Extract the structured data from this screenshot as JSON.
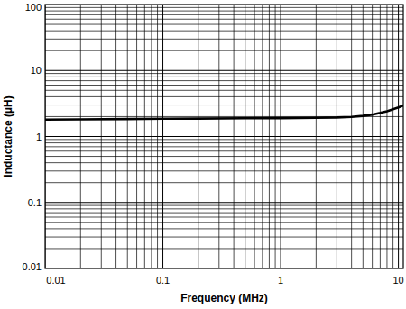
{
  "chart_data": {
    "type": "line",
    "x_label": "Frequency (MHz)",
    "y_label": "Inductance (µH)",
    "log": true,
    "grid": true,
    "xlim": [
      0.01,
      11
    ],
    "ylim": [
      0.01,
      100
    ],
    "xticks": [
      0.01,
      0.1,
      1,
      10
    ],
    "yticks": [
      0.01,
      0.1,
      1,
      10,
      100
    ],
    "x": [
      0.01,
      0.02,
      0.05,
      0.1,
      0.2,
      0.5,
      1,
      2,
      3,
      4,
      5,
      6,
      7,
      8,
      9,
      10,
      11
    ],
    "series": [
      {
        "color": "#000000",
        "values": [
          1.8,
          1.82,
          1.84,
          1.86,
          1.87,
          1.89,
          1.9,
          1.92,
          1.94,
          1.98,
          2.05,
          2.15,
          2.28,
          2.42,
          2.58,
          2.75,
          2.95
        ]
      }
    ]
  }
}
